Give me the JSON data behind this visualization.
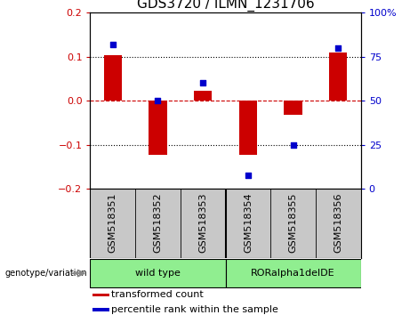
{
  "title": "GDS3720 / ILMN_1231706",
  "samples": [
    "GSM518351",
    "GSM518352",
    "GSM518353",
    "GSM518354",
    "GSM518355",
    "GSM518356"
  ],
  "red_bars": [
    0.103,
    -0.122,
    0.022,
    -0.122,
    -0.032,
    0.11
  ],
  "blue_dots_pct": [
    82,
    50,
    60,
    8,
    25,
    80
  ],
  "ylim_left": [
    -0.2,
    0.2
  ],
  "ylim_right": [
    0,
    100
  ],
  "yticks_left": [
    -0.2,
    -0.1,
    0.0,
    0.1,
    0.2
  ],
  "yticks_right": [
    0,
    25,
    50,
    75,
    100
  ],
  "ytick_labels_right": [
    "0",
    "25",
    "50",
    "75",
    "100%"
  ],
  "group_labels": [
    "wild type",
    "RORalpha1delDE"
  ],
  "group_sample_counts": [
    3,
    3
  ],
  "genotype_label": "genotype/variation",
  "legend_items": [
    {
      "color": "#cc0000",
      "label": "transformed count"
    },
    {
      "color": "#0000cc",
      "label": "percentile rank within the sample"
    }
  ],
  "bar_color": "#cc0000",
  "dot_color": "#0000cc",
  "bar_width": 0.4,
  "title_fontsize": 11,
  "tick_fontsize": 8,
  "label_fontsize": 8,
  "bg_color": "#ffffff",
  "plot_bg_color": "#ffffff",
  "tick_label_color_left": "#cc0000",
  "tick_label_color_right": "#0000cc",
  "gray_bg": "#c8c8c8",
  "green_bg": "#90ee90"
}
